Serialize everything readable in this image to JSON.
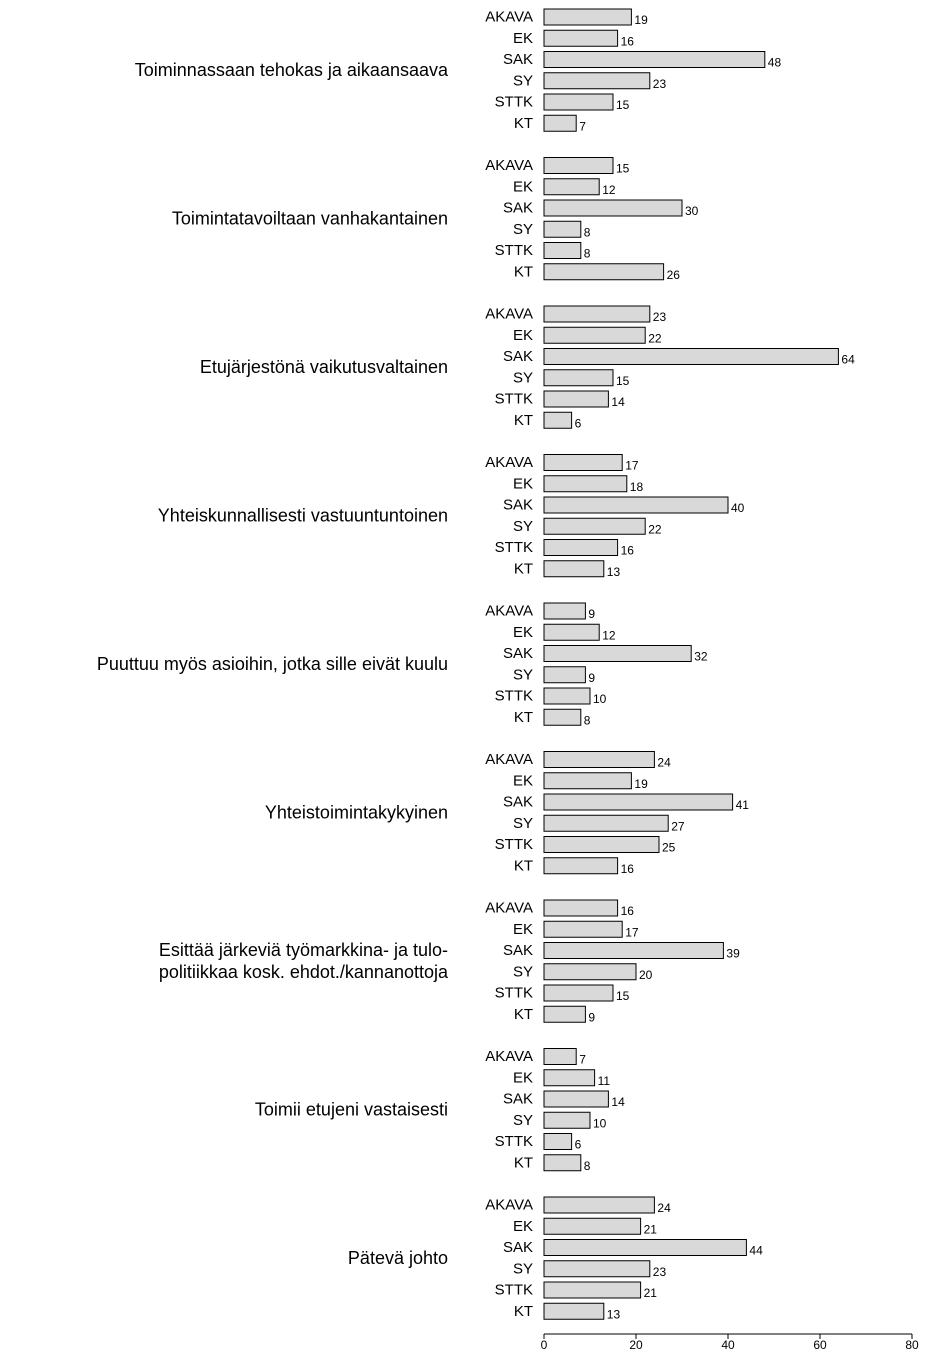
{
  "chart_data": {
    "type": "bar",
    "orientation": "horizontal",
    "xlim": [
      0,
      80
    ],
    "x_ticks": [
      0,
      20,
      40,
      60,
      80
    ],
    "grid": false,
    "groups": [
      {
        "label": [
          "Toiminnassaan tehokas ja aikaansaava"
        ],
        "categories": [
          "AKAVA",
          "EK",
          "SAK",
          "SY",
          "STTK",
          "KT"
        ],
        "values": [
          19,
          16,
          48,
          23,
          15,
          7
        ]
      },
      {
        "label": [
          "Toimintatavoiltaan vanhakantainen"
        ],
        "categories": [
          "AKAVA",
          "EK",
          "SAK",
          "SY",
          "STTK",
          "KT"
        ],
        "values": [
          15,
          12,
          30,
          8,
          8,
          26
        ]
      },
      {
        "label": [
          "Etujärjestönä vaikutusvaltainen"
        ],
        "categories": [
          "AKAVA",
          "EK",
          "SAK",
          "SY",
          "STTK",
          "KT"
        ],
        "values": [
          23,
          22,
          64,
          15,
          14,
          6
        ]
      },
      {
        "label": [
          "Yhteiskunnallisesti vastuuntuntoinen"
        ],
        "categories": [
          "AKAVA",
          "EK",
          "SAK",
          "SY",
          "STTK",
          "KT"
        ],
        "values": [
          17,
          18,
          40,
          22,
          16,
          13
        ]
      },
      {
        "label": [
          "Puuttuu myös asioihin, jotka sille eivät kuulu"
        ],
        "categories": [
          "AKAVA",
          "EK",
          "SAK",
          "SY",
          "STTK",
          "KT"
        ],
        "values": [
          9,
          12,
          32,
          9,
          10,
          8
        ]
      },
      {
        "label": [
          "Yhteistoimintakykyinen"
        ],
        "categories": [
          "AKAVA",
          "EK",
          "SAK",
          "SY",
          "STTK",
          "KT"
        ],
        "values": [
          24,
          19,
          41,
          27,
          25,
          16
        ]
      },
      {
        "label": [
          "Esittää järkeviä työmarkkina- ja tulo-",
          "politiikkaa kosk. ehdot./kannanottoja"
        ],
        "categories": [
          "AKAVA",
          "EK",
          "SAK",
          "SY",
          "STTK",
          "KT"
        ],
        "values": [
          16,
          17,
          39,
          20,
          15,
          9
        ]
      },
      {
        "label": [
          "Toimii etujeni vastaisesti"
        ],
        "categories": [
          "AKAVA",
          "EK",
          "SAK",
          "SY",
          "STTK",
          "KT"
        ],
        "values": [
          7,
          11,
          14,
          10,
          6,
          8
        ]
      },
      {
        "label": [
          "Pätevä johto"
        ],
        "categories": [
          "AKAVA",
          "EK",
          "SAK",
          "SY",
          "STTK",
          "KT"
        ],
        "values": [
          24,
          21,
          44,
          23,
          21,
          13
        ]
      }
    ],
    "colors": {
      "bar_fill": "#d9d9d9",
      "bar_stroke": "#000000"
    }
  }
}
